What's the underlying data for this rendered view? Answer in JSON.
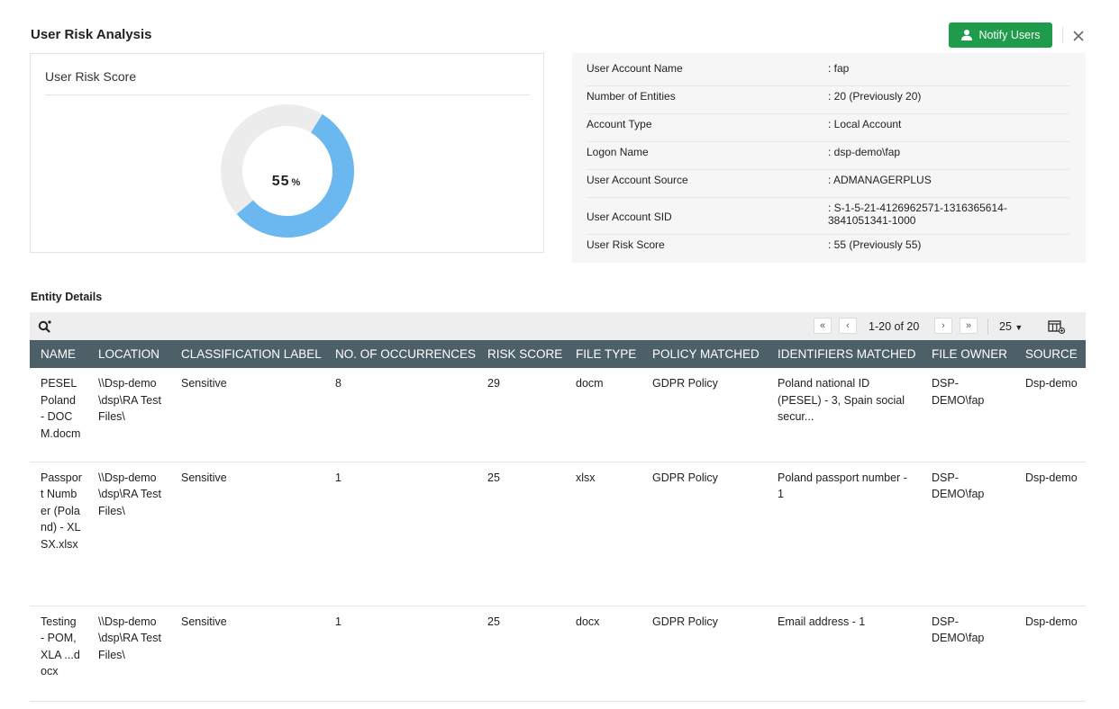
{
  "header": {
    "title": "User Risk Analysis",
    "notify_label": "Notify Users",
    "close_icon": "close-icon"
  },
  "score_card": {
    "title": "User Risk Score",
    "value": "55",
    "unit": "%",
    "fraction": 0.55,
    "fill_color": "#6ab8ef",
    "track_color": "#ececec"
  },
  "account_info": [
    {
      "key": "User Account Name",
      "value": ": fap"
    },
    {
      "key": "Number of Entities",
      "value": ": 20 (Previously 20)"
    },
    {
      "key": "Account Type",
      "value": ": Local Account"
    },
    {
      "key": "Logon Name",
      "value": ": dsp-demo\\fap"
    },
    {
      "key": "User Account Source",
      "value": ": ADMANAGERPLUS"
    },
    {
      "key": "User Account SID",
      "value": ": S-1-5-21-4126962571-1316365614-3841051341-1000"
    },
    {
      "key": "User Risk Score",
      "value": ": 55 (Previously 55)"
    }
  ],
  "entities": {
    "title": "Entity Details",
    "pagination": {
      "range": "1-20 of 20",
      "page_size": "25"
    },
    "columns": [
      "NAME",
      "LOCATION",
      "CLASSIFICATION LABEL",
      "NO. OF OCCURRENCES",
      "RISK SCORE",
      "FILE TYPE",
      "POLICY MATCHED",
      "IDENTIFIERS MATCHED",
      "FILE OWNER",
      "SOURCE"
    ],
    "rows": [
      [
        "PESEL Poland - DOCM.docm",
        "\\\\Dsp-demo\\dsp\\RA Test Files\\",
        "Sensitive",
        "8",
        "29",
        "docm",
        "GDPR Policy",
        "Poland national ID (PESEL) - 3, Spain social secur...",
        "DSP-DEMO\\fap",
        "Dsp-demo"
      ],
      [
        "Passport Number (Poland) - XLSX.xlsx",
        "\\\\Dsp-demo\\dsp\\RA Test Files\\",
        "Sensitive",
        "1",
        "25",
        "xlsx",
        "GDPR Policy",
        "Poland passport number - 1",
        "DSP-DEMO\\fap",
        "Dsp-demo"
      ],
      [
        "Testing - POM, XLA ...docx",
        "\\\\Dsp-demo\\dsp\\RA Test Files\\",
        "Sensitive",
        "1",
        "25",
        "docx",
        "GDPR Policy",
        "Email address - 1",
        "DSP-DEMO\\fap",
        "Dsp-demo"
      ]
    ]
  },
  "colors": {
    "accent_green": "#1e9b4b",
    "table_header": "#4d5f67",
    "info_panel_bg": "#f5f6f5"
  }
}
